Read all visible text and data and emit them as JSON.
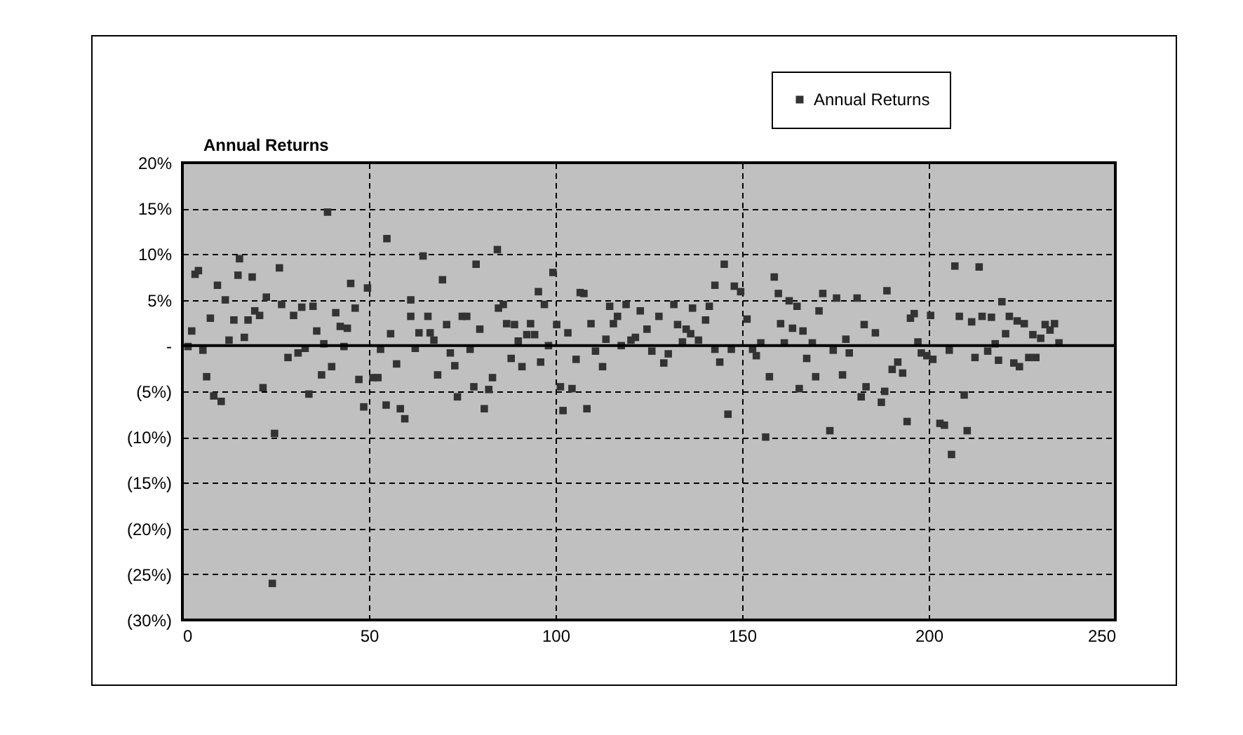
{
  "chart_data": {
    "type": "scatter",
    "title": "Annual Returns",
    "legend": "top right",
    "grid": true,
    "marker": "square",
    "xlim": [
      0,
      250
    ],
    "xticks": [
      0,
      50,
      100,
      150,
      200,
      250
    ],
    "ylim": [
      -30,
      20
    ],
    "yticks": [
      {
        "value": 20,
        "label": "20%"
      },
      {
        "value": 15,
        "label": "15%"
      },
      {
        "value": 10,
        "label": "10%"
      },
      {
        "value": 5,
        "label": "5%"
      },
      {
        "value": 0,
        "label": "-"
      },
      {
        "value": -5,
        "label": "(5%)"
      },
      {
        "value": -10,
        "label": "(10%)"
      },
      {
        "value": -15,
        "label": "(15%)"
      },
      {
        "value": -20,
        "label": "(20%)"
      },
      {
        "value": -25,
        "label": "(25%)"
      },
      {
        "value": -30,
        "label": "(30%)"
      }
    ],
    "ref_lines": [
      {
        "axis": "y",
        "value": 0
      }
    ],
    "series": [
      {
        "name": "Annual Returns",
        "color": "#333333",
        "x": [
          1.5,
          2.5,
          3.4,
          4.3,
          5.5,
          6.5,
          7.5,
          8.4,
          10.4,
          9.4,
          11.5,
          12.5,
          13.8,
          14.9,
          15.3,
          16.6,
          17.6,
          18.7,
          19.4,
          20.7,
          21.6,
          22.5,
          24.7,
          24.1,
          26.0,
          26.6,
          28.3,
          29.8,
          31.0,
          32.0,
          32.9,
          33.9,
          35.0,
          36.0,
          37.3,
          37.9,
          38.9,
          40.0,
          41.1,
          42.3,
          43.3,
          44.2,
          45.1,
          46.3,
          47.3,
          48.6,
          49.6,
          51.1,
          53.1,
          52.4,
          54.6,
          54.8,
          55.8,
          57.4,
          58.4,
          59.6,
          61.2,
          61.2,
          62.4,
          63.4,
          64.5,
          65.8,
          66.4,
          67.4,
          68.4,
          69.7,
          70.8,
          71.8,
          73.0,
          73.7,
          75.0,
          76.2,
          77.1,
          78.1,
          78.7,
          79.7,
          80.9,
          82.1,
          83.1,
          84.4,
          84.7,
          86.0,
          86.9,
          88.1,
          89.0,
          90.0,
          91.0,
          92.3,
          93.3,
          94.4,
          95.4,
          96.0,
          97.0,
          98.1,
          99.3,
          100.3,
          101.3,
          102.0,
          103.3,
          104.4,
          105.5,
          106.6,
          107.6,
          108.4,
          109.5,
          110.7,
          112.6,
          113.5,
          114.5,
          115.5,
          116.6,
          117.6,
          118.9,
          120.2,
          121.4,
          122.7,
          124.5,
          125.8,
          127.7,
          129.0,
          130.2,
          131.7,
          132.7,
          134.0,
          135.0,
          136.2,
          136.7,
          138.3,
          140.2,
          141.2,
          142.7,
          142.7,
          144.0,
          145.2,
          146.2,
          147.1,
          147.9,
          149.6,
          151.3,
          152.8,
          153.8,
          155.0,
          156.3,
          157.3,
          158.6,
          159.7,
          160.3,
          161.3,
          162.6,
          163.5,
          164.7,
          165.3,
          166.3,
          167.3,
          168.8,
          169.7,
          170.6,
          171.6,
          173.5,
          174.4,
          175.3,
          176.9,
          177.8,
          178.7,
          180.8,
          181.9,
          182.7,
          183.2,
          185.7,
          187.3,
          188.2,
          188.8,
          190.2,
          191.7,
          193.0,
          194.2,
          195.1,
          196.1,
          197.1,
          198.0,
          199.5,
          200.5,
          201.1,
          203.0,
          204.2,
          205.5,
          206.1,
          207.0,
          208.2,
          209.5,
          210.3,
          211.5,
          212.4,
          213.5,
          214.3,
          215.8,
          216.8,
          217.8,
          218.7,
          219.6,
          220.6,
          221.6,
          222.8,
          223.7,
          224.3,
          225.6,
          226.8,
          227.9,
          228.7,
          230.0,
          231.2,
          232.5,
          233.7,
          234.9
        ],
        "values": [
          -0.1,
          1.6,
          7.8,
          8.2,
          -0.5,
          -3.4,
          3.0,
          -5.5,
          -6.1,
          6.6,
          5.0,
          0.6,
          2.8,
          7.7,
          9.5,
          0.9,
          2.8,
          7.5,
          3.8,
          3.3,
          -4.6,
          5.3,
          -9.6,
          -26.0,
          8.5,
          4.5,
          -1.3,
          3.3,
          -0.8,
          4.2,
          -0.3,
          -5.3,
          4.3,
          1.6,
          -3.2,
          0.2,
          14.6,
          -2.3,
          3.6,
          2.1,
          -0.1,
          1.9,
          6.8,
          4.1,
          -3.7,
          -6.7,
          6.3,
          -3.5,
          -0.4,
          -3.5,
          -6.5,
          11.7,
          1.3,
          -2.0,
          -6.9,
          -8.0,
          5.0,
          3.2,
          -0.3,
          1.4,
          9.8,
          3.2,
          1.4,
          0.6,
          -3.2,
          7.2,
          2.3,
          -0.8,
          -2.2,
          -5.6,
          3.2,
          3.2,
          -0.4,
          -4.5,
          8.9,
          1.8,
          -6.9,
          -4.8,
          -3.5,
          10.5,
          4.1,
          4.5,
          2.4,
          -1.4,
          2.3,
          0.5,
          -2.3,
          1.2,
          2.4,
          1.2,
          5.9,
          -1.8,
          4.5,
          0.0,
          8.0,
          2.3,
          -4.5,
          -7.1,
          1.4,
          -4.7,
          -1.5,
          5.8,
          5.7,
          -6.9,
          2.4,
          -0.6,
          -2.3,
          0.7,
          4.3,
          2.4,
          3.2,
          0.0,
          4.5,
          0.6,
          0.9,
          3.8,
          1.8,
          -0.6,
          3.2,
          -1.9,
          -0.9,
          4.5,
          2.3,
          0.4,
          1.8,
          1.3,
          4.1,
          0.6,
          2.8,
          4.3,
          6.6,
          -0.4,
          -1.8,
          8.9,
          -7.5,
          -0.4,
          6.5,
          5.9,
          2.9,
          -0.4,
          -1.1,
          0.3,
          -10.0,
          -3.4,
          7.5,
          5.7,
          2.4,
          0.3,
          4.9,
          1.9,
          4.3,
          -4.7,
          1.6,
          -1.4,
          0.3,
          -3.4,
          3.8,
          5.7,
          -9.3,
          -0.5,
          5.2,
          -3.2,
          0.7,
          -0.8,
          5.2,
          -5.6,
          2.3,
          -4.5,
          1.4,
          -6.2,
          -5.0,
          6.0,
          -2.6,
          -1.8,
          -3.0,
          -8.3,
          3.0,
          3.5,
          0.4,
          -0.8,
          -1.1,
          3.3,
          -1.5,
          -8.5,
          -8.7,
          -0.5,
          -11.9,
          8.7,
          3.2,
          -5.4,
          -9.3,
          2.6,
          -1.3,
          8.6,
          3.2,
          -0.6,
          3.1,
          0.2,
          -1.6,
          4.8,
          1.3,
          3.2,
          -1.9,
          2.7,
          -2.3,
          2.4,
          -1.3,
          1.2,
          -1.3,
          0.8,
          2.3,
          1.7,
          2.4,
          0.3
        ]
      }
    ]
  }
}
